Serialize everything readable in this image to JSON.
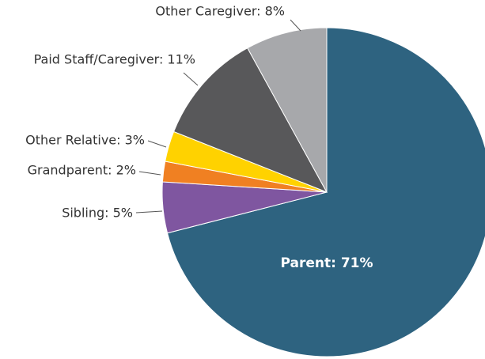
{
  "chart_data": {
    "type": "pie",
    "values": [
      71,
      5,
      2,
      3,
      11,
      8
    ],
    "value_labels": [
      "Parent: 71%",
      "Sibling: 5%",
      "Grandparent: 2%",
      "Other Relative: 3%",
      "Paid Staff/Caregiver: 11%",
      "Other Caregiver: 8%"
    ],
    "colors": [
      "#2e6380",
      "#7f56a0",
      "#f08022",
      "#ffd200",
      "#58585a",
      "#a7a8ab"
    ]
  }
}
